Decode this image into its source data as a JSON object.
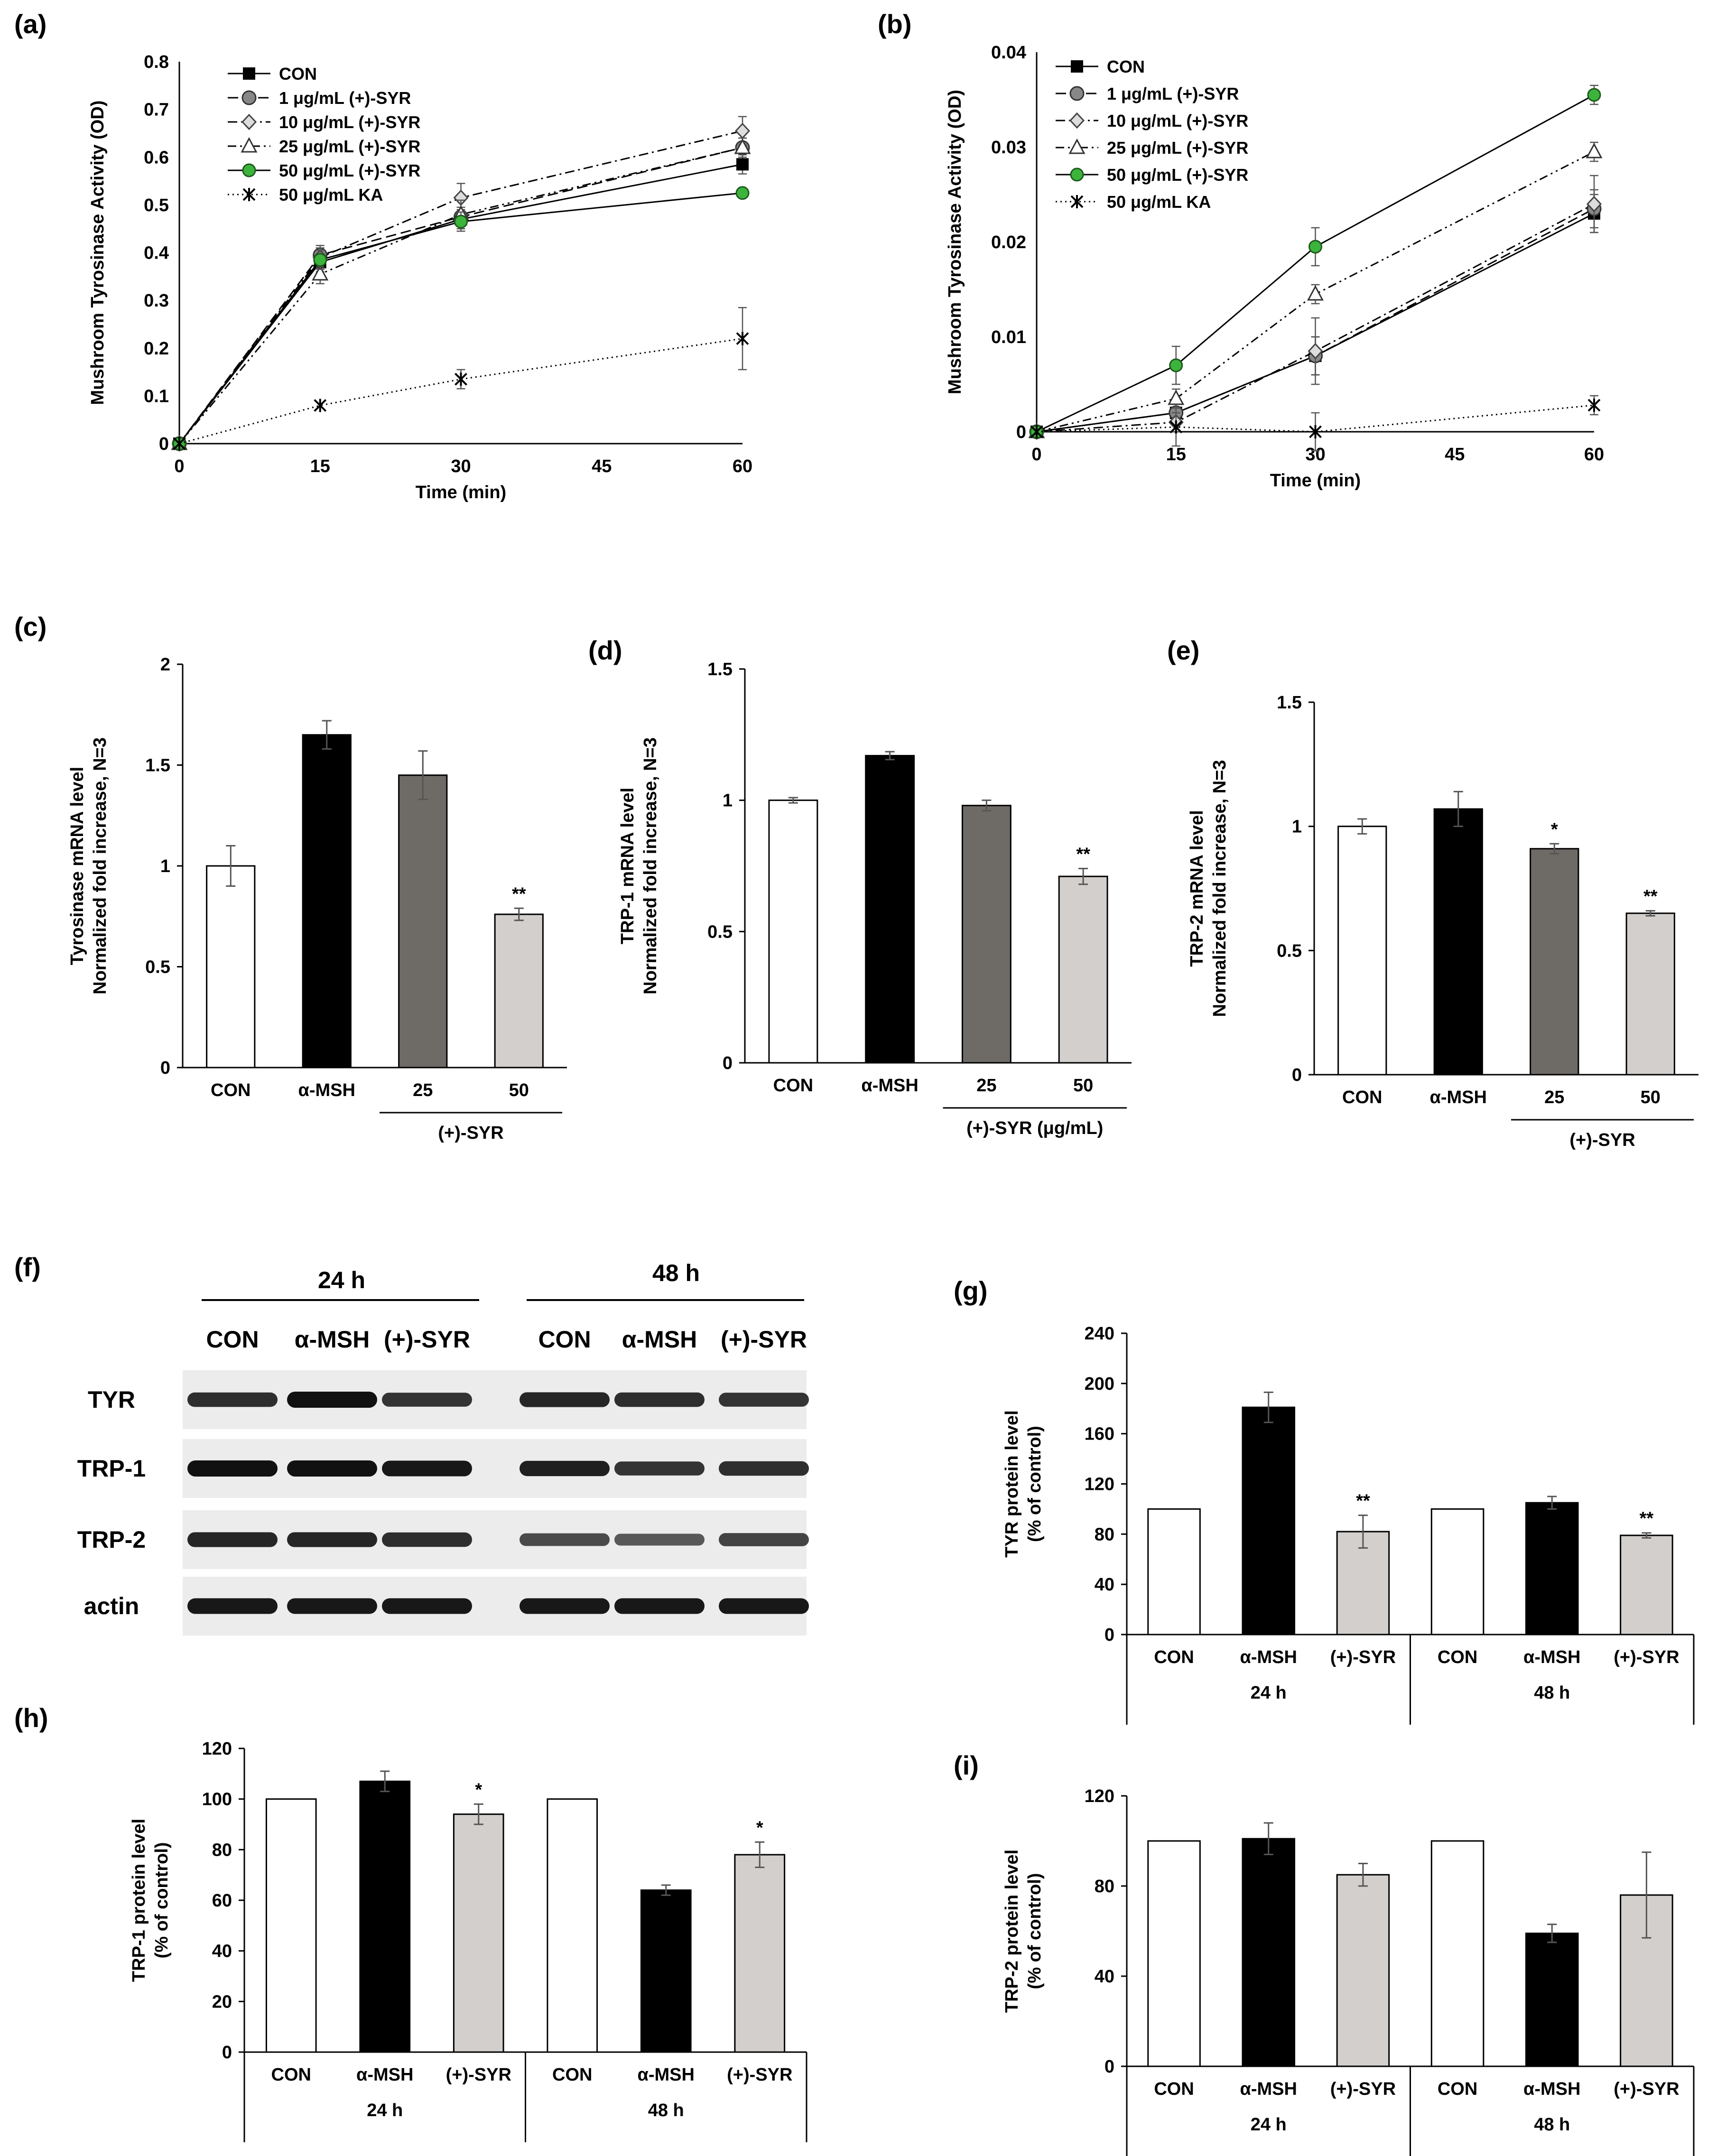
{
  "panels": [
    "(a)",
    "(b)",
    "(c)",
    "(d)",
    "(e)",
    "(f)",
    "(g)",
    "(h)",
    "(i)"
  ],
  "colors": {
    "con": "#ffffff",
    "msh": "#000000",
    "syr25": "#6e6a66",
    "syr50": "#d2cfcc",
    "green": "#3cb43c"
  },
  "chart_data": [
    {
      "id": "a",
      "type": "line",
      "title": "",
      "xlabel": "Time (min)",
      "ylabel": "Mushroom Tyrosinase Activity (OD)",
      "x": [
        0,
        15,
        30,
        60
      ],
      "xticks": [
        "0",
        "15",
        "30",
        "45",
        "60"
      ],
      "xlim": [
        0,
        60
      ],
      "yticks": [
        "0",
        "0.1",
        "0.2",
        "0.3",
        "0.4",
        "0.5",
        "0.6",
        "0.7",
        "0.8"
      ],
      "ylim": [
        0,
        0.8
      ],
      "series": [
        {
          "name": "CON",
          "values": [
            0,
            0.38,
            0.47,
            0.585
          ],
          "errors": [
            0,
            0.02,
            0.02,
            0.02
          ],
          "marker": "square",
          "dash": ""
        },
        {
          "name": "1 μg/mL (+)-SYR",
          "values": [
            0,
            0.395,
            0.475,
            0.62
          ],
          "errors": [
            0,
            0.02,
            0.02,
            0.02
          ],
          "marker": "circle-gray",
          "dash": "22 10"
        },
        {
          "name": "10 μg/mL (+)-SYR",
          "values": [
            0,
            0.39,
            0.515,
            0.655
          ],
          "errors": [
            0,
            0.02,
            0.03,
            0.03
          ],
          "marker": "diamond",
          "dash": "20 8 4 8"
        },
        {
          "name": "25 μg/mL (+)-SYR",
          "values": [
            0,
            0.355,
            0.48,
            0.62
          ],
          "errors": [
            0,
            0.02,
            0.03,
            0.02
          ],
          "marker": "triangle",
          "dash": "18 8 4 8 4 8"
        },
        {
          "name": "50 μg/mL (+)-SYR",
          "values": [
            0,
            0.385,
            0.465,
            0.525
          ],
          "errors": [
            0,
            0.02,
            0.02,
            0.0
          ],
          "marker": "circle-green",
          "dash": ""
        },
        {
          "name": "50 μg/mL KA",
          "values": [
            0,
            0.08,
            0.135,
            0.22
          ],
          "errors": [
            0,
            0.0,
            0.02,
            0.065
          ],
          "marker": "star",
          "dash": "3 7"
        }
      ]
    },
    {
      "id": "b",
      "type": "line",
      "title": "",
      "xlabel": "Time (min)",
      "ylabel": "Mushroom Tyrosinase Activity (OD)",
      "x": [
        0,
        15,
        30,
        60
      ],
      "xticks": [
        "0",
        "15",
        "30",
        "45",
        "60"
      ],
      "xlim": [
        0,
        60
      ],
      "yticks": [
        "0",
        "0.01",
        "0.02",
        "0.03",
        "0.04"
      ],
      "ylim": [
        0,
        0.04
      ],
      "series": [
        {
          "name": "CON",
          "values": [
            0,
            0.002,
            0.008,
            0.023
          ],
          "errors": [
            0,
            0.001,
            0.002,
            0.002
          ],
          "marker": "square",
          "dash": ""
        },
        {
          "name": "1 μg/mL (+)-SYR",
          "values": [
            0,
            0.002,
            0.008,
            0.0235
          ],
          "errors": [
            0,
            0.001,
            0.002,
            0.002
          ],
          "marker": "circle-gray",
          "dash": "22 10"
        },
        {
          "name": "10 μg/mL (+)-SYR",
          "values": [
            0,
            0.001,
            0.0085,
            0.024
          ],
          "errors": [
            0,
            0.001,
            0.0035,
            0.003
          ],
          "marker": "diamond",
          "dash": "20 8 4 8"
        },
        {
          "name": "25 μg/mL (+)-SYR",
          "values": [
            0,
            0.0035,
            0.0145,
            0.0295
          ],
          "errors": [
            0,
            0.001,
            0.001,
            0.001
          ],
          "marker": "triangle",
          "dash": "18 8 4 8 4 8"
        },
        {
          "name": "50 μg/mL (+)-SYR",
          "values": [
            0,
            0.007,
            0.0195,
            0.0355
          ],
          "errors": [
            0,
            0.002,
            0.002,
            0.001
          ],
          "marker": "circle-green",
          "dash": ""
        },
        {
          "name": "50 μg/mL KA",
          "values": [
            0,
            0.0005,
            0.0,
            0.0028
          ],
          "errors": [
            0,
            0.002,
            0.002,
            0.001
          ],
          "marker": "star",
          "dash": "3 7"
        }
      ]
    },
    {
      "id": "c",
      "type": "bar",
      "title": "",
      "ylabel": "Tyrosinase mRNA level",
      "ylabel2": "Normalized fold increase, N=3",
      "categories": [
        "CON",
        "α-MSH",
        "25",
        "50"
      ],
      "group_label": "(+)-SYR",
      "values": [
        1.0,
        1.65,
        1.45,
        0.76
      ],
      "errors": [
        0.1,
        0.07,
        0.12,
        0.03
      ],
      "sig": [
        "",
        "",
        "",
        "**"
      ],
      "yticks": [
        "0",
        "0.5",
        "1",
        "1.5",
        "2"
      ],
      "ylim": [
        0,
        2
      ]
    },
    {
      "id": "d",
      "type": "bar",
      "title": "",
      "ylabel": "TRP-1  mRNA level",
      "ylabel2": "Normalized fold increase, N=3",
      "categories": [
        "CON",
        "α-MSH",
        "25",
        "50"
      ],
      "group_label": "(+)-SYR (μg/mL)",
      "values": [
        1.0,
        1.17,
        0.98,
        0.71
      ],
      "errors": [
        0.01,
        0.015,
        0.02,
        0.03
      ],
      "sig": [
        "",
        "",
        "",
        "**"
      ],
      "yticks": [
        "0",
        "0.5",
        "1",
        "1.5"
      ],
      "ylim": [
        0,
        1.5
      ]
    },
    {
      "id": "e",
      "type": "bar",
      "title": "",
      "ylabel": "TRP-2  mRNA level",
      "ylabel2": "Normalized fold increase, N=3",
      "categories": [
        "CON",
        "α-MSH",
        "25",
        "50"
      ],
      "group_label": "(+)-SYR",
      "values": [
        1.0,
        1.07,
        0.91,
        0.65
      ],
      "errors": [
        0.03,
        0.07,
        0.02,
        0.01
      ],
      "sig": [
        "",
        "",
        "*",
        "**"
      ],
      "yticks": [
        "0",
        "0.5",
        "1",
        "1.5"
      ],
      "ylim": [
        0,
        1.5
      ]
    },
    {
      "id": "g",
      "type": "bar",
      "title": "",
      "ylabel": "TYR protein level",
      "ylabel2": "(% of control)",
      "categories": [
        "CON",
        "α-MSH",
        "(+)-SYR",
        "CON",
        "α-MSH",
        "(+)-SYR"
      ],
      "groups": [
        "24 h",
        "48 h"
      ],
      "values": [
        100,
        181,
        82,
        100,
        105,
        79
      ],
      "errors": [
        0,
        12,
        13,
        0,
        5,
        2
      ],
      "sig": [
        "",
        "",
        "**",
        "",
        "",
        "**"
      ],
      "yticks": [
        "0",
        "40",
        "80",
        "120",
        "160",
        "200",
        "240"
      ],
      "ylim": [
        0,
        240
      ]
    },
    {
      "id": "h",
      "type": "bar",
      "title": "",
      "ylabel": "TRP-1 protein level",
      "ylabel2": "(% of control)",
      "categories": [
        "CON",
        "α-MSH",
        "(+)-SYR",
        "CON",
        "α-MSH",
        "(+)-SYR"
      ],
      "groups": [
        "24 h",
        "48 h"
      ],
      "values": [
        100,
        107,
        94,
        100,
        64,
        78
      ],
      "errors": [
        0,
        4,
        4,
        0,
        2,
        5
      ],
      "sig": [
        "",
        "",
        "*",
        "",
        "",
        "*"
      ],
      "yticks": [
        "0",
        "20",
        "40",
        "60",
        "80",
        "100",
        "120"
      ],
      "ylim": [
        0,
        120
      ]
    },
    {
      "id": "i",
      "type": "bar",
      "title": "",
      "ylabel": "TRP-2 protein level",
      "ylabel2": "(% of control)",
      "categories": [
        "CON",
        "α-MSH",
        "(+)-SYR",
        "CON",
        "α-MSH",
        "(+)-SYR"
      ],
      "groups": [
        "24 h",
        "48 h"
      ],
      "values": [
        100,
        101,
        85,
        100,
        59,
        76
      ],
      "errors": [
        0,
        7,
        5,
        0,
        4,
        19
      ],
      "sig": [
        "",
        "",
        "",
        "",
        "",
        ""
      ],
      "yticks": [
        "0",
        "40",
        "80",
        "120"
      ],
      "ylim": [
        0,
        120
      ]
    }
  ],
  "blot": {
    "times": [
      "24 h",
      "48 h"
    ],
    "lanes": [
      "CON",
      "α-MSH",
      "(+)-SYR",
      "CON",
      "α-MSH",
      "(+)-SYR"
    ],
    "rows": [
      "TYR",
      "TRP-1",
      "TRP-2",
      "actin"
    ],
    "intensity": [
      [
        0.8,
        1.0,
        0.75,
        0.85,
        0.8,
        0.75
      ],
      [
        1.0,
        1.0,
        0.95,
        0.9,
        0.75,
        0.8
      ],
      [
        0.85,
        0.85,
        0.8,
        0.6,
        0.5,
        0.65
      ],
      [
        0.95,
        0.95,
        0.95,
        0.95,
        0.95,
        0.95
      ]
    ]
  }
}
